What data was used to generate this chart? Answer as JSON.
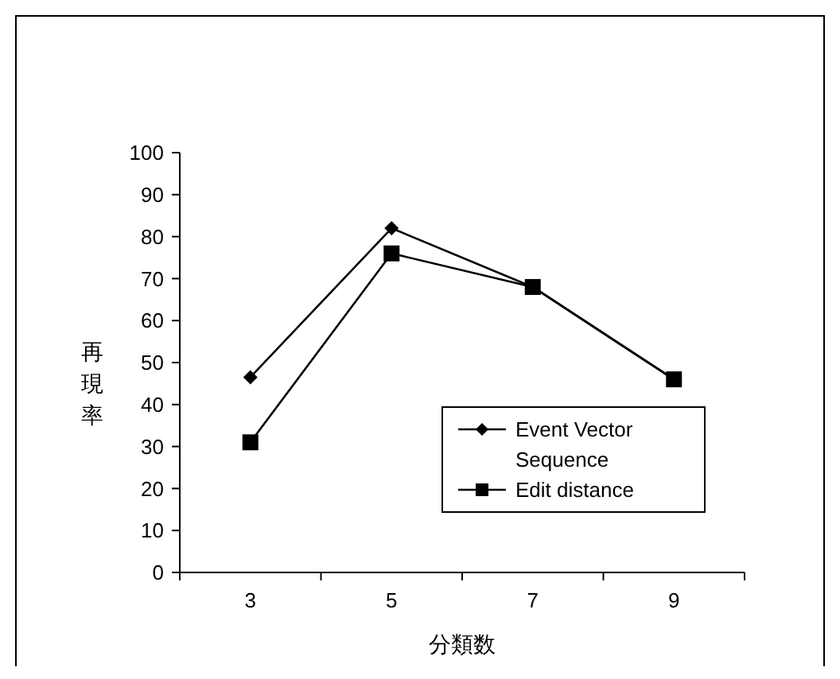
{
  "chart_data": {
    "type": "line",
    "xlabel": "分類数",
    "ylabel": "再現率",
    "categories": [
      "3",
      "5",
      "7",
      "9"
    ],
    "series": [
      {
        "name": "Event Vector Sequence",
        "color": "#000000",
        "marker": "diamond",
        "values": [
          46.5,
          82,
          68,
          46
        ]
      },
      {
        "name": "Edit distance",
        "color": "#000000",
        "marker": "square",
        "values": [
          31,
          76,
          68,
          46
        ]
      }
    ],
    "ylim": [
      0,
      100
    ],
    "yticks": [
      0,
      10,
      20,
      30,
      40,
      50,
      60,
      70,
      80,
      90,
      100
    ],
    "grid": false,
    "legend": "bottom right",
    "line_style": "solid"
  }
}
